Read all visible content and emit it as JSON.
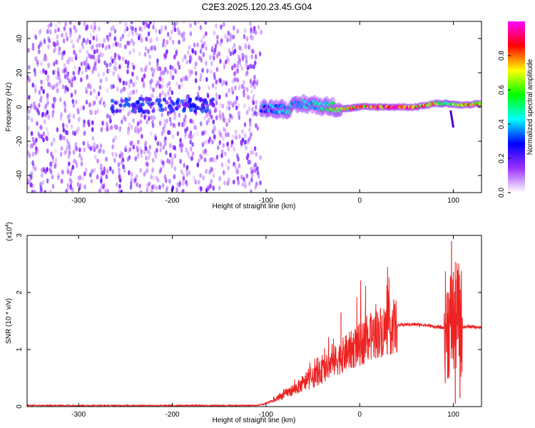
{
  "title": "C2E3.2025.120.23.45.G04",
  "chart_data": [
    {
      "type": "heatmap",
      "xlabel": "Height of straight line (km)",
      "ylabel": "Frequency (Hz)",
      "xlim": [
        -355,
        130
      ],
      "ylim": [
        -50,
        50
      ],
      "xticks": [
        -300,
        -200,
        -100,
        0,
        100
      ],
      "yticks": [
        -40,
        -20,
        0,
        20,
        40
      ],
      "colorbar": {
        "label": "Normalized spectral amplitude",
        "range": [
          0,
          1
        ],
        "ticks": [
          "0.0",
          "0.2",
          "0.4",
          "0.6",
          "0.8"
        ],
        "colors": [
          "#ffffff",
          "#9b30ff",
          "#0000ff",
          "#00ffff",
          "#00ff00",
          "#ffff00",
          "#ff0000",
          "#ff00ff"
        ]
      },
      "noise_region_km": [
        -355,
        -105
      ],
      "signal_trace": {
        "x": [
          -105,
          -90,
          -75,
          -60,
          -45,
          -30,
          -15,
          0,
          20,
          40,
          60,
          80,
          95,
          110,
          130
        ],
        "freq": [
          0,
          -1,
          -1,
          2,
          1,
          0,
          -1,
          0,
          0,
          0,
          0,
          2,
          2,
          1,
          2
        ],
        "amplitude": [
          0.35,
          0.4,
          0.45,
          0.45,
          0.5,
          0.6,
          0.7,
          0.85,
          0.9,
          0.9,
          0.85,
          0.8,
          0.6,
          0.75,
          0.8
        ]
      },
      "grid": false
    },
    {
      "type": "line",
      "xlabel": "Height of straight line (km)",
      "ylabel": "SNR (10 * v/v)",
      "yscale_label": "(x10",
      "yscale_exp": "4",
      "xlim": [
        -355,
        130
      ],
      "ylim": [
        0,
        3
      ],
      "xticks": [
        -300,
        -200,
        -100,
        0,
        100
      ],
      "yticks": [
        0,
        1,
        2,
        3
      ],
      "color": "#ee2222",
      "grid": false,
      "series": [
        {
          "x": [
            -355,
            -200,
            -110,
            -100,
            -90,
            -80,
            -70,
            -60,
            -50,
            -40,
            -30,
            -20,
            -10,
            0,
            10,
            20,
            30,
            40,
            50,
            60,
            70,
            80,
            90,
            95,
            100,
            105,
            110,
            120,
            130
          ],
          "y": [
            0.02,
            0.02,
            0.02,
            0.05,
            0.12,
            0.22,
            0.3,
            0.4,
            0.5,
            0.62,
            0.75,
            0.88,
            0.98,
            1.08,
            1.2,
            1.3,
            1.37,
            1.42,
            1.44,
            1.44,
            1.43,
            1.4,
            1.38,
            1.45,
            1.5,
            1.6,
            1.4,
            1.4,
            1.38
          ]
        }
      ],
      "spikes": [
        {
          "x": -20,
          "y": 1.65
        },
        {
          "x": 98,
          "y": 2.9
        },
        {
          "x": 102,
          "y": 0.05
        },
        {
          "x": 104,
          "y": 2.4
        },
        {
          "x": 107,
          "y": 0.15
        }
      ]
    }
  ]
}
